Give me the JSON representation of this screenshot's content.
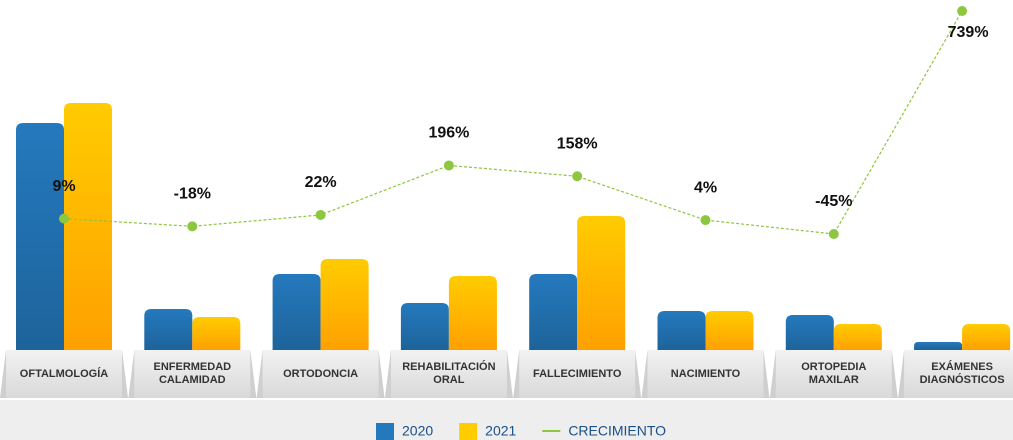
{
  "chart_data": {
    "type": "bar",
    "categories": [
      "OFTALMOLOGÍA",
      "ENFERMEDAD CALAMIDAD",
      "ORTODONCIA",
      "REHABILITACIÓN ORAL",
      "FALLECIMIENTO",
      "NACIMIENTO",
      "ORTOPEDIA MAXILAR",
      "EXÁMENES DIAGNÓSTICOS"
    ],
    "series": [
      {
        "name": "2020",
        "color": "#2479bd",
        "values": [
          227,
          41,
          76,
          47,
          76,
          39,
          35,
          8
        ]
      },
      {
        "name": "2021",
        "color": "#ffcc00",
        "values": [
          247,
          33,
          91,
          74,
          134,
          39,
          26,
          26
        ]
      },
      {
        "name": "CRECIMIENTO",
        "type": "line",
        "color": "#8dc63f",
        "values": [
          9,
          -18,
          22,
          196,
          158,
          4,
          -45,
          739
        ],
        "value_labels": [
          "9%",
          "-18%",
          "22%",
          "196%",
          "158%",
          "4%",
          "-45%",
          "739%"
        ]
      }
    ],
    "legend": "bottom"
  }
}
